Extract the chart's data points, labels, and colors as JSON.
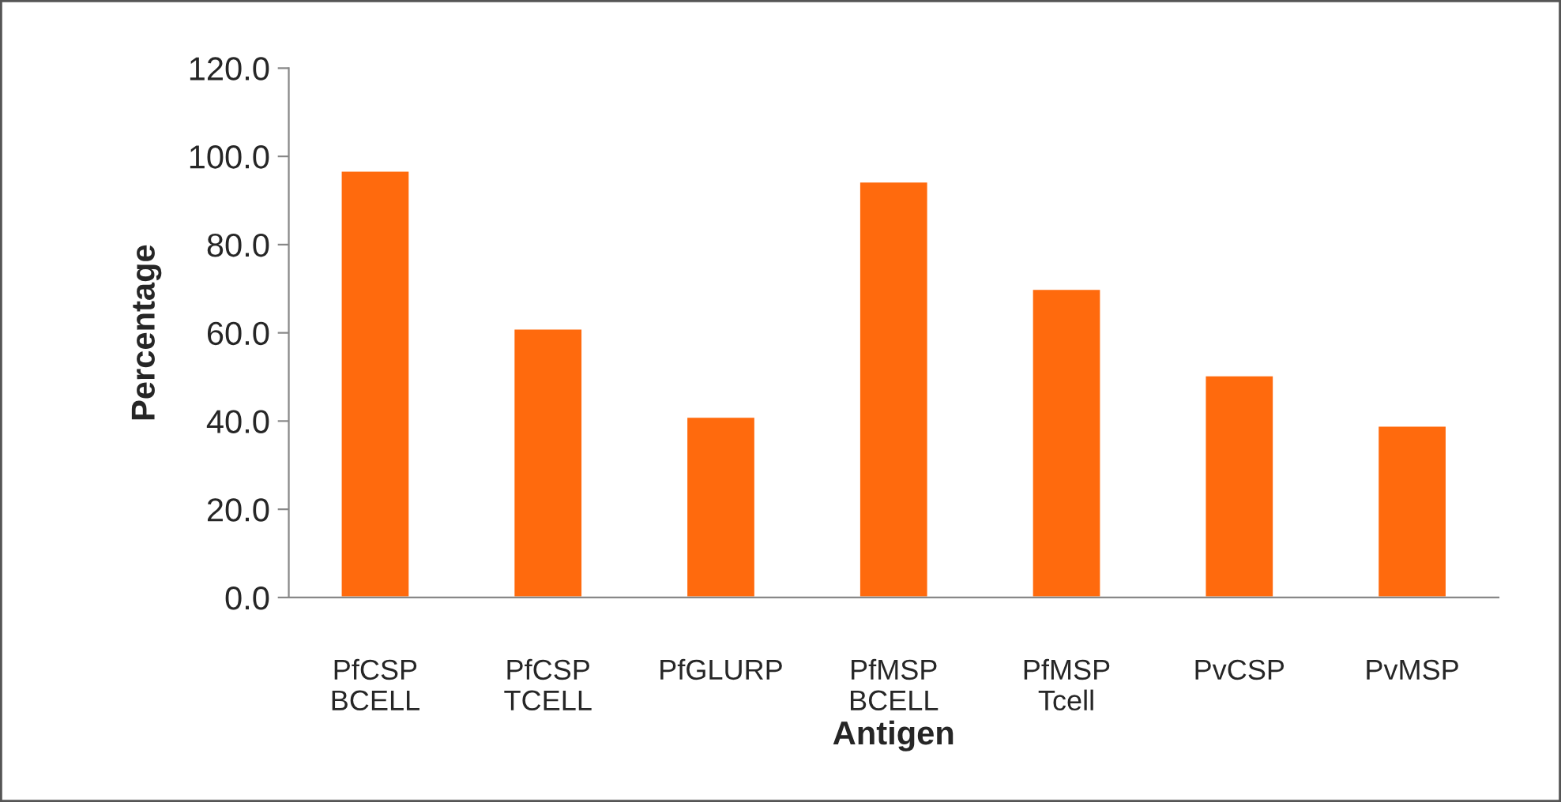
{
  "chart_data": {
    "type": "bar",
    "xlabel": "Antigen",
    "ylabel": "Percentage",
    "categories": [
      "PfCSP\nBCELL",
      "PfCSP\nTCELL",
      "PfGLURP",
      "PfMSP\nBCELL",
      "PfMSP\nTcell",
      "PvCSP",
      "PvMSP"
    ],
    "values": [
      96.8,
      61,
      41,
      94.3,
      70,
      50.4,
      39
    ],
    "color": "#ff6a0d",
    "ylim": [
      0,
      120
    ],
    "yticks": [
      {
        "value": 0,
        "label": "0.0"
      },
      {
        "value": 20,
        "label": "20.0"
      },
      {
        "value": 40,
        "label": "40.0"
      },
      {
        "value": 60,
        "label": "60.0"
      },
      {
        "value": 80,
        "label": "80.0"
      },
      {
        "value": 100,
        "label": "100.0"
      },
      {
        "value": 120,
        "label": "120.0"
      }
    ],
    "grid": false,
    "legend": false
  }
}
